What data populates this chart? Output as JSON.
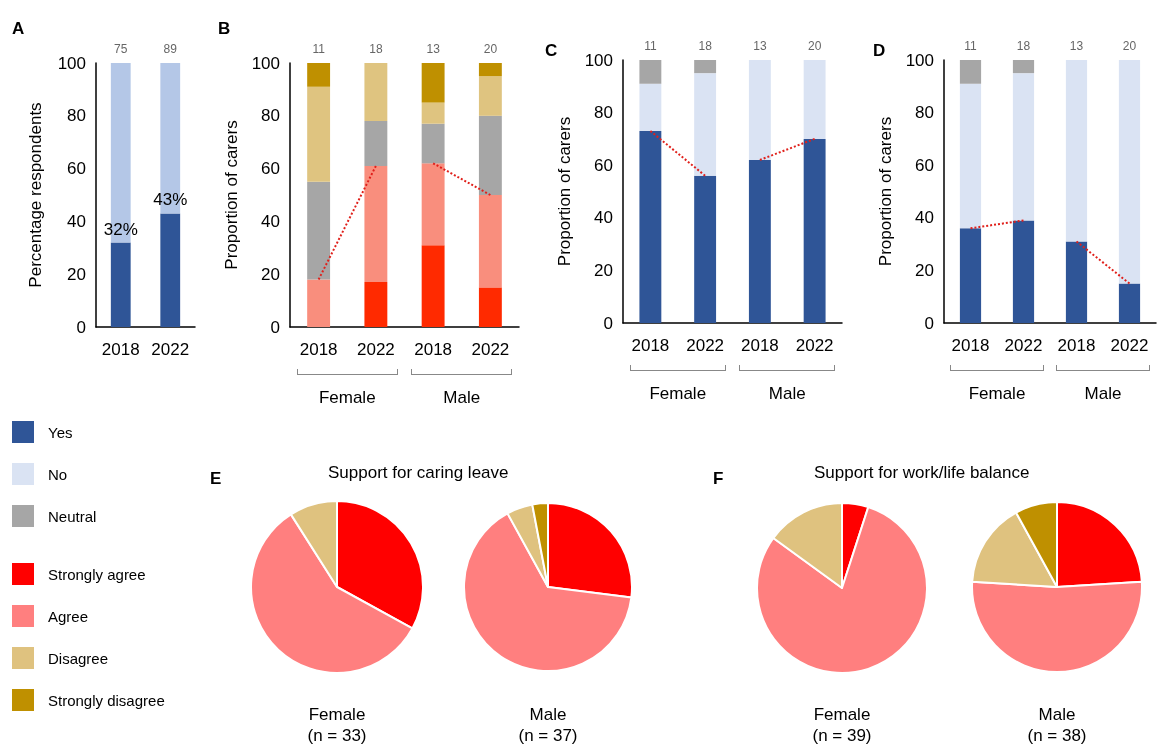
{
  "chart_data": [
    {
      "type": "bar",
      "annotations": [
        "A",
        "75",
        "89"
      ],
      "ylabel": "Percentage respondents",
      "categories": [
        "2018",
        "2022"
      ],
      "stacked": true,
      "ylim": [
        0,
        100
      ],
      "yticks": [
        0,
        20,
        40,
        60,
        80,
        100
      ],
      "series": [
        {
          "color": "#2f5597",
          "values": [
            32,
            43
          ],
          "value_labels": [
            "32%",
            "43%"
          ]
        },
        {
          "color": "#b4c7e7",
          "values": [
            68,
            57
          ]
        }
      ]
    },
    {
      "type": "bar",
      "annotations": [
        "B",
        "11",
        "18",
        "13",
        "20",
        "Female",
        "Male"
      ],
      "ylabel": "Proportion of carers",
      "categories": [
        "2018",
        "2022",
        "2018",
        "2022"
      ],
      "stacked": true,
      "ylim": [
        0,
        100
      ],
      "yticks": [
        0,
        20,
        40,
        60,
        80,
        100
      ],
      "series": [
        {
          "color": "#ff2a00",
          "values": [
            0,
            17,
            31,
            15
          ]
        },
        {
          "color": "#f98e7d",
          "values": [
            18,
            44,
            31,
            35
          ]
        },
        {
          "color": "#a6a6a6",
          "values": [
            37,
            17,
            15,
            30
          ]
        },
        {
          "color": "#dfc480",
          "values": [
            36,
            22,
            8,
            15
          ]
        },
        {
          "color": "#bf9000",
          "values": [
            9,
            0,
            15,
            5
          ]
        },
        {
          "type": "line",
          "color": "#e0201b",
          "line_style": "dotted",
          "values": [
            18,
            61,
            null,
            null
          ]
        },
        {
          "type": "line",
          "color": "#e0201b",
          "line_style": "dotted",
          "values": [
            null,
            null,
            62,
            50
          ]
        }
      ]
    },
    {
      "type": "bar",
      "annotations": [
        "C",
        "11",
        "18",
        "13",
        "20",
        "Female",
        "Male"
      ],
      "ylabel": "Proportion of carers",
      "categories": [
        "2018",
        "2022",
        "2018",
        "2022"
      ],
      "stacked": true,
      "ylim": [
        0,
        100
      ],
      "yticks": [
        0,
        20,
        40,
        60,
        80,
        100
      ],
      "series": [
        {
          "color": "#2f5597",
          "values": [
            73,
            56,
            62,
            70
          ]
        },
        {
          "color": "#dae3f3",
          "values": [
            18,
            39,
            38,
            30
          ]
        },
        {
          "color": "#a6a6a6",
          "values": [
            9,
            5,
            0,
            0
          ]
        },
        {
          "type": "line",
          "color": "#e0201b",
          "line_style": "dotted",
          "values": [
            73,
            56,
            null,
            null
          ]
        },
        {
          "type": "line",
          "color": "#e0201b",
          "line_style": "dotted",
          "values": [
            null,
            null,
            62,
            70
          ]
        }
      ]
    },
    {
      "type": "bar",
      "annotations": [
        "D",
        "11",
        "18",
        "13",
        "20",
        "Female",
        "Male"
      ],
      "ylabel": "Proportion of carers",
      "categories": [
        "2018",
        "2022",
        "2018",
        "2022"
      ],
      "stacked": true,
      "ylim": [
        0,
        100
      ],
      "yticks": [
        0,
        20,
        40,
        60,
        80,
        100
      ],
      "legend": "bottom left",
      "series": [
        {
          "name": "Yes",
          "color": "#2f5597",
          "values": [
            36,
            39,
            31,
            15
          ]
        },
        {
          "name": "No",
          "color": "#dae3f3",
          "values": [
            55,
            56,
            69,
            85
          ]
        },
        {
          "name": "Neutral",
          "color": "#a6a6a6",
          "values": [
            9,
            5,
            0,
            0
          ]
        },
        {
          "type": "line",
          "color": "#e0201b",
          "line_style": "dotted",
          "values": [
            36,
            39,
            null,
            null
          ]
        },
        {
          "type": "line",
          "color": "#e0201b",
          "line_style": "dotted",
          "values": [
            null,
            null,
            31,
            15
          ]
        }
      ]
    },
    {
      "type": "pie",
      "title": "Support for caring leave",
      "annotations": [
        "E"
      ],
      "subtitle": "Female\n(n = 33)",
      "categories": [
        null,
        null,
        null
      ],
      "values": [
        33,
        58,
        9
      ],
      "colors": [
        "#ff0000",
        "#ff7f7f",
        "#dfc27f"
      ]
    },
    {
      "type": "pie",
      "subtitle": "Male\n(n = 37)",
      "categories": [
        null,
        null,
        null,
        null
      ],
      "values": [
        27,
        65,
        5,
        3
      ],
      "colors": [
        "#ff0000",
        "#ff7f7f",
        "#dfc27f",
        "#bf9000"
      ]
    },
    {
      "type": "pie",
      "title": "Support for work/life balance",
      "annotations": [
        "F"
      ],
      "subtitle": "Female\n(n = 39)",
      "categories": [
        null,
        null,
        null
      ],
      "values": [
        5,
        80,
        15
      ],
      "colors": [
        "#ff0000",
        "#ff7f7f",
        "#dfc27f"
      ]
    },
    {
      "type": "pie",
      "subtitle": "Male\n(n = 38)",
      "legend": "bottom left",
      "categories": [
        "Strongly agree",
        "Agree",
        "Disagree",
        "Strongly disagree"
      ],
      "values": [
        24,
        52,
        16,
        8
      ],
      "colors": [
        "#ff0000",
        "#ff7f7f",
        "#dfc27f",
        "#bf9000"
      ]
    }
  ]
}
